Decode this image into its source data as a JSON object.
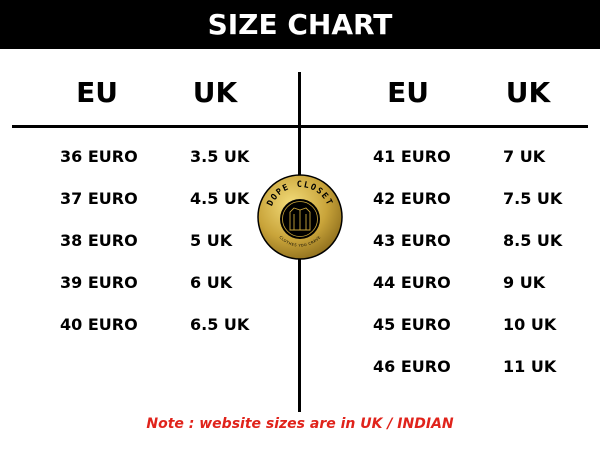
{
  "header": {
    "title": "SIZE CHART"
  },
  "left": {
    "col_eu": "EU",
    "col_uk": "UK",
    "rows": [
      {
        "eu": "36 EURO",
        "uk": "3.5 UK"
      },
      {
        "eu": "37 EURO",
        "uk": "4.5 UK"
      },
      {
        "eu": "38 EURO",
        "uk": "5 UK"
      },
      {
        "eu": "39 EURO",
        "uk": "6 UK"
      },
      {
        "eu": "40 EURO",
        "uk": "6.5 UK"
      }
    ]
  },
  "right": {
    "col_eu": "EU",
    "col_uk": "UK",
    "rows": [
      {
        "eu": "41 EURO",
        "uk": "7 UK"
      },
      {
        "eu": "42 EURO",
        "uk": "7.5 UK"
      },
      {
        "eu": "43 EURO",
        "uk": "8.5 UK"
      },
      {
        "eu": "44 EURO",
        "uk": "9 UK"
      },
      {
        "eu": "45 EURO",
        "uk": "10 UK"
      },
      {
        "eu": "46 EURO",
        "uk": "11 UK"
      }
    ]
  },
  "logo": {
    "name": "DOPE CLOSET",
    "tagline": "CLOTHES YOU CRAVE",
    "icon": "shirt-icon"
  },
  "note": "Note : website sizes are in UK / INDIAN",
  "colors": {
    "header_bg": "#000000",
    "note": "#e0231b",
    "logo_gold": "#c9a43a"
  }
}
